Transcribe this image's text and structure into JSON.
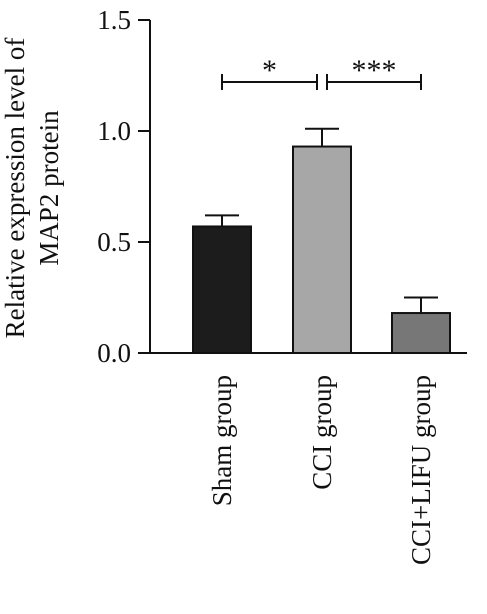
{
  "chart_data": {
    "type": "bar",
    "categories": [
      "Sham group",
      "CCI group",
      "CCI+LIFU group"
    ],
    "values": [
      0.57,
      0.93,
      0.18
    ],
    "errors": [
      0.05,
      0.08,
      0.07
    ],
    "bar_colors": [
      "#1c1c1c",
      "#a7a7a7",
      "#777777"
    ],
    "ylabel": [
      "Relative expression level of",
      "MAP2 protein"
    ],
    "xlabel": "",
    "ylim": [
      0,
      1.5
    ],
    "yticks": [
      0.0,
      0.5,
      1.0,
      1.5
    ],
    "ytick_labels": [
      "0.0",
      "0.5",
      "1.0",
      "1.5"
    ],
    "grid": false,
    "significance": [
      {
        "from": 0,
        "to": 1,
        "label": "*"
      },
      {
        "from": 1,
        "to": 2,
        "label": "***"
      }
    ]
  }
}
